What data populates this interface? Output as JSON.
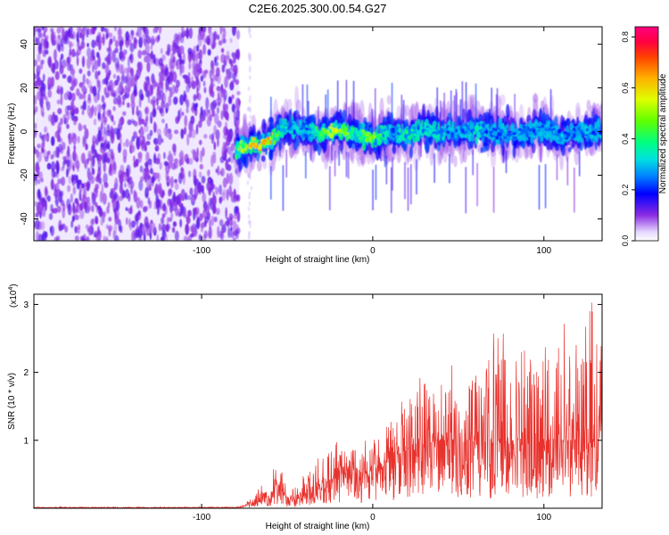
{
  "title": "C2E6.2025.300.00.54.G27",
  "colors": {
    "snr_line": "#e8322d",
    "axis": "#000000"
  },
  "chart_data": [
    {
      "type": "heatmap",
      "xlabel": "Height of straight line (km)",
      "ylabel": "Frequency (Hz)",
      "xlim": [
        -198,
        134
      ],
      "ylim": [
        -50,
        48
      ],
      "x_ticks": [
        -100,
        0,
        100
      ],
      "x_tick_labels": [
        "-100",
        "0",
        "100"
      ],
      "y_ticks": [
        -40,
        -20,
        0,
        20,
        40
      ],
      "y_tick_labels": [
        "-40",
        "-20",
        "0",
        "20",
        "40"
      ],
      "colorbar": {
        "label": "Normalized spectral amplitude",
        "range": [
          0,
          0.84
        ],
        "ticks": [
          0.0,
          0.2,
          0.4,
          0.6,
          0.8
        ],
        "tick_labels": [
          "0.0",
          "0.2",
          "0.4",
          "0.6",
          "0.8"
        ]
      },
      "noise_region": {
        "x_range": [
          -198,
          -78
        ],
        "freq_range": [
          -50,
          48
        ],
        "typical_amplitude": 0.05
      },
      "signal_band": {
        "x": [
          -80,
          -70,
          -60,
          -55,
          -50,
          -40,
          -30,
          -20,
          -10,
          0,
          10,
          20,
          30,
          40,
          50,
          60,
          70,
          80,
          90,
          100,
          110,
          120,
          134
        ],
        "center_freq": [
          -8,
          -6,
          -4,
          0,
          2,
          1,
          -1,
          1,
          -1,
          -3,
          0,
          -1,
          1,
          0,
          0,
          1,
          0,
          -1,
          0,
          1,
          -2,
          0,
          0
        ],
        "peak_amplitude": [
          0.5,
          0.65,
          0.7,
          0.4,
          0.35,
          0.3,
          0.45,
          0.65,
          0.4,
          0.55,
          0.3,
          0.4,
          0.35,
          0.35,
          0.3,
          0.35,
          0.3,
          0.3,
          0.3,
          0.3,
          0.3,
          0.3,
          0.3
        ]
      }
    },
    {
      "type": "line",
      "xlabel": "Height of straight line (km)",
      "ylabel": "SNR (10 * v/v)",
      "scale_label": "(x10",
      "scale_exponent": "4",
      "scale_suffix": ")",
      "xlim": [
        -198,
        134
      ],
      "ylim": [
        0,
        3.15
      ],
      "x_ticks": [
        -100,
        0,
        100
      ],
      "x_tick_labels": [
        "-100",
        "0",
        "100"
      ],
      "y_ticks": [
        1,
        2,
        3
      ],
      "y_tick_labels": [
        "1",
        "2",
        "3"
      ],
      "envelope": {
        "x": [
          -198,
          -80,
          -75,
          -70,
          -65,
          -60,
          -55,
          -50,
          -45,
          -40,
          -35,
          -30,
          -25,
          -20,
          -15,
          -10,
          -5,
          0,
          5,
          10,
          20,
          30,
          40,
          50,
          60,
          70,
          80,
          90,
          100,
          110,
          120,
          125,
          130,
          134
        ],
        "center": [
          0.01,
          0.01,
          0.03,
          0.1,
          0.15,
          0.2,
          0.35,
          0.15,
          0.1,
          0.25,
          0.3,
          0.35,
          0.4,
          0.5,
          0.5,
          0.55,
          0.5,
          0.55,
          0.65,
          0.75,
          0.85,
          0.95,
          1.0,
          1.0,
          1.0,
          0.95,
          1.0,
          1.0,
          0.95,
          1.0,
          1.0,
          1.05,
          1.0,
          1.05
        ],
        "peak": [
          0.02,
          0.02,
          0.06,
          0.2,
          0.35,
          0.45,
          0.8,
          0.3,
          0.35,
          0.5,
          0.7,
          0.8,
          1.0,
          1.0,
          0.9,
          1.05,
          1.0,
          1.0,
          1.2,
          1.4,
          1.65,
          2.05,
          2.0,
          2.2,
          2.1,
          2.8,
          2.55,
          2.3,
          2.5,
          2.9,
          2.45,
          2.95,
          3.15,
          2.7
        ]
      }
    }
  ]
}
